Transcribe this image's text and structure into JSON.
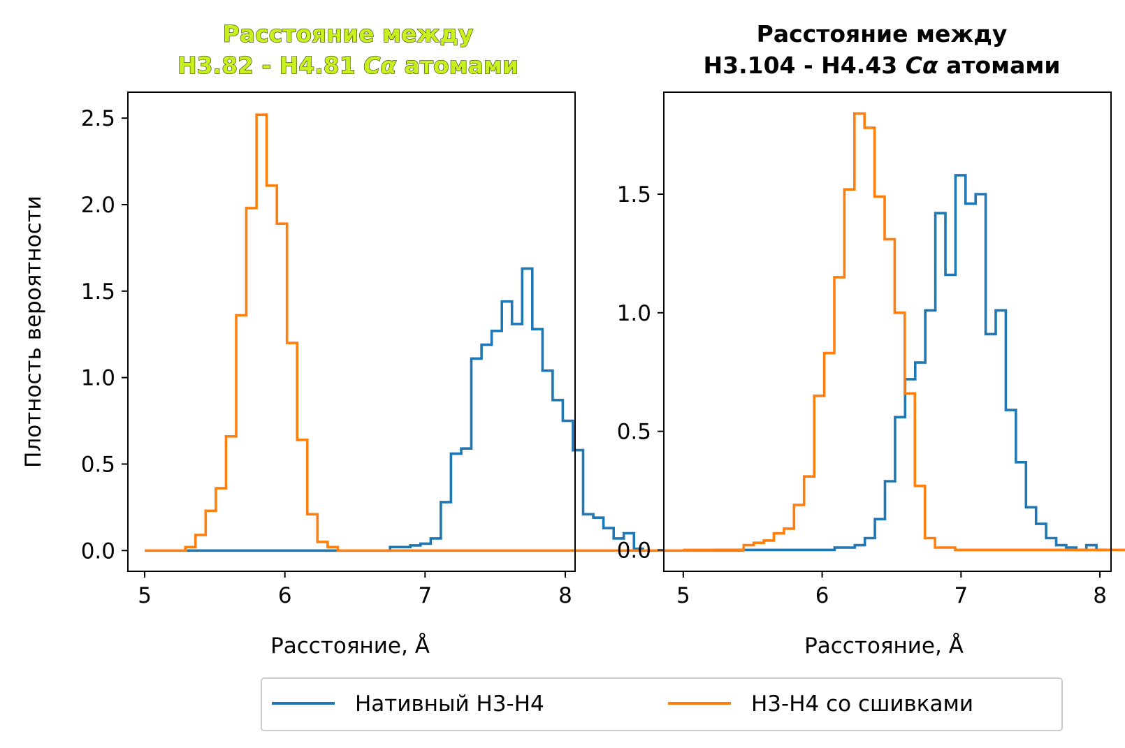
{
  "colors": {
    "native": "#1f77b4",
    "crosslinked": "#ff7f0e",
    "title_left": "#c6f01e"
  },
  "legend": {
    "placement": "bottom-center"
  },
  "chart_data": [
    {
      "type": "line",
      "subtype": "step-histogram",
      "title_line1": "Расстояние между",
      "title_line2_prefix": "H3.82 - H4.81 ",
      "title_line2_math": "Cα",
      "title_line2_suffix": " атомами",
      "xlabel": "Расстояние, Å",
      "ylabel": "Плотность вероятности",
      "xlim": [
        4.88,
        8.07
      ],
      "ylim": [
        -0.12,
        2.65
      ],
      "xticks": [
        5,
        6,
        7,
        8
      ],
      "xtick_labels": [
        "5",
        "6",
        "7",
        "8"
      ],
      "yticks": [
        0,
        0.5,
        1,
        1.5,
        2,
        2.5
      ],
      "ytick_labels": [
        "0.0",
        "0.5",
        "1.0",
        "1.5",
        "2.0",
        "2.5"
      ],
      "bin_start": 5.0,
      "bin_width": 0.0725,
      "series": [
        {
          "name": "Нативный H3-H4",
          "color": "#1f77b4",
          "x_start": 5.3,
          "values": [
            0,
            0,
            0,
            0,
            0,
            0,
            0,
            0,
            0,
            0,
            0,
            0,
            0,
            0,
            0,
            0,
            0,
            0,
            0,
            0,
            0.02,
            0.02,
            0.03,
            0.04,
            0.07,
            0.28,
            0.56,
            0.59,
            1.11,
            1.19,
            1.27,
            1.44,
            1.31,
            1.63,
            1.28,
            1.04,
            0.87,
            0.75,
            0.58,
            0.21,
            0.19,
            0.13,
            0.07,
            0.1,
            0.01
          ]
        },
        {
          "name": "H3-H4 со сшивками",
          "color": "#ff7f0e",
          "x_start": 5.0,
          "values": [
            0,
            0,
            0,
            0,
            0.02,
            0.09,
            0.23,
            0.36,
            0.66,
            1.36,
            1.98,
            2.52,
            2.11,
            1.89,
            1.2,
            0.64,
            0.21,
            0.05,
            0.02,
            0,
            0,
            0,
            0,
            0,
            0,
            0,
            0,
            0,
            0,
            0,
            0,
            0,
            0,
            0,
            0,
            0,
            0,
            0,
            0,
            0,
            0,
            0,
            0,
            0,
            0,
            0,
            0,
            0,
            0,
            0,
            0,
            0,
            0,
            0,
            0,
            0,
            0,
            0,
            0
          ]
        }
      ]
    },
    {
      "type": "line",
      "subtype": "step-histogram",
      "title_line1": "Расстояние между",
      "title_line2_prefix": "H3.104 - H4.43 ",
      "title_line2_math": "Cα",
      "title_line2_suffix": " атомами",
      "xlabel": "Расстояние, Å",
      "ylabel": "",
      "xlim": [
        4.86,
        8.08
      ],
      "ylim": [
        -0.09,
        1.93
      ],
      "xticks": [
        5,
        6,
        7,
        8
      ],
      "xtick_labels": [
        "5",
        "6",
        "7",
        "8"
      ],
      "yticks": [
        0,
        0.5,
        1,
        1.5
      ],
      "ytick_labels": [
        "0.0",
        "0.5",
        "1.0",
        "1.5"
      ],
      "bin_start": 5.0,
      "bin_width": 0.0725,
      "series": [
        {
          "name": "Нативный H3-H4",
          "color": "#1f77b4",
          "x_start": 5.22,
          "values": [
            0,
            0,
            0,
            0,
            0,
            0,
            0,
            0,
            0,
            0,
            0,
            0,
            0.01,
            0.01,
            0.02,
            0.05,
            0.13,
            0.29,
            0.56,
            0.72,
            0.79,
            1.01,
            1.42,
            1.16,
            1.58,
            1.46,
            1.5,
            0.91,
            1.01,
            0.59,
            0.37,
            0.18,
            0.11,
            0.05,
            0.02,
            0.01,
            0,
            0.02,
            0
          ]
        },
        {
          "name": "H3-H4 со сшивками",
          "color": "#ff7f0e",
          "x_start": 5.0,
          "values": [
            0,
            0,
            0,
            0,
            0,
            0,
            0.02,
            0.03,
            0.04,
            0.07,
            0.09,
            0.19,
            0.31,
            0.65,
            0.83,
            1.15,
            1.52,
            1.84,
            1.78,
            1.49,
            1.31,
            1.0,
            0.66,
            0.27,
            0.05,
            0.01,
            0.01,
            0,
            0,
            0,
            0,
            0,
            0,
            0,
            0,
            0,
            0,
            0,
            0,
            0,
            0,
            0,
            0,
            0,
            0,
            0,
            0,
            0,
            0,
            0,
            0,
            0,
            0,
            0,
            0,
            0,
            0,
            0,
            0,
            0,
            0,
            0,
            0,
            0,
            0,
            0,
            0,
            0,
            0,
            0,
            0,
            0,
            0,
            0,
            0,
            0,
            0,
            0
          ]
        }
      ]
    }
  ]
}
